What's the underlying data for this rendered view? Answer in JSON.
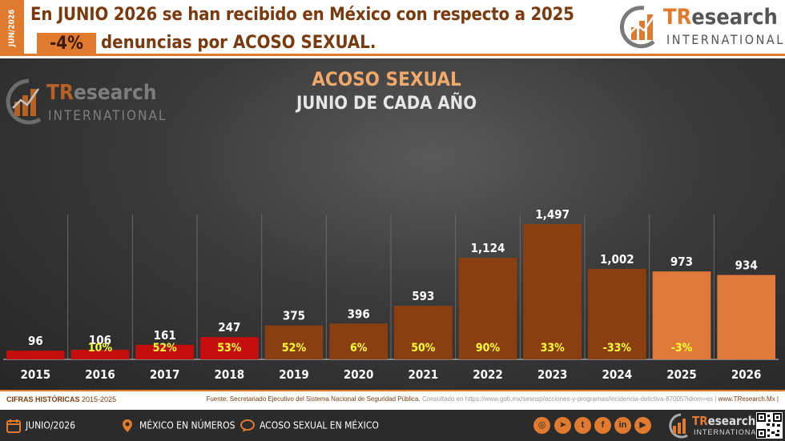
{
  "header": {
    "side_tag": "JUN/2026",
    "headline": "En JUNIO 2026 se han recibido en México con respecto a 2025",
    "change": "-4%",
    "headline2": "denuncias por ACOSO SEXUAL.",
    "brand_tr": "TR",
    "brand_rest": "esearch",
    "brand_sub": "INTERNATIONAL"
  },
  "chart_data": {
    "type": "bar",
    "title": "ACOSO SEXUAL",
    "subtitle": "JUNIO DE CADA AÑO",
    "categories": [
      "2015",
      "2016",
      "2017",
      "2018",
      "2019",
      "2020",
      "2021",
      "2022",
      "2023",
      "2024",
      "2025",
      "2026"
    ],
    "values": [
      96,
      106,
      161,
      247,
      375,
      396,
      593,
      1124,
      1497,
      1002,
      973,
      934
    ],
    "value_labels": [
      "96",
      "106",
      "161",
      "247",
      "375",
      "396",
      "593",
      "1,124",
      "1,497",
      "1,002",
      "973",
      "934"
    ],
    "pct_change": [
      "",
      "10%",
      "52%",
      "53%",
      "52%",
      "6%",
      "50%",
      "90%",
      "33%",
      "-33%",
      "-3%",
      ""
    ],
    "bar_colors": [
      "#c40e0e",
      "#c40e0e",
      "#c40e0e",
      "#c40e0e",
      "#8b3f10",
      "#8b3f10",
      "#8b3f10",
      "#8b3f10",
      "#8b3f10",
      "#8b3f10",
      "#e07a3a",
      "#e07a3a"
    ],
    "ylim": [
      0,
      1497
    ],
    "grid": false,
    "pct_color": "#ffff33",
    "label_color": "#ffffff"
  },
  "source": {
    "hist_label": "CIFRAS HISTÓRICAS",
    "hist_range": "2015-2025",
    "fuente": "Fuente: Secretariado Ejecutivo del Sistema Nacional de Seguridad Pública.",
    "consulted": "Consultado en https://www.gob.mx/sesnsp/acciones-y-programas/incidencia-delictiva-87005?idiom=es |",
    "site": "www.TResearch.Mx |"
  },
  "footer": {
    "item1": "JUNIO/2026",
    "item2": "MÉXICO EN NÚMEROS",
    "item3": "ACOSO SEXUAL EN MÉXICO",
    "social": [
      "ig",
      "tg",
      "tw",
      "fb",
      "in",
      "yt"
    ]
  }
}
